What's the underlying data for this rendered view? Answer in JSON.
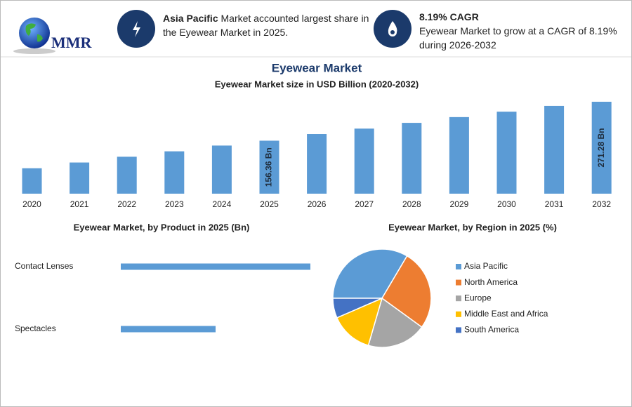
{
  "header": {
    "logo": "MMR",
    "stats": [
      {
        "title": "Asia Pacific",
        "text": "Market accounted largest share in the Eyewear Market in 2025."
      },
      {
        "title": "8.19% CAGR",
        "text": "Eyewear Market to grow at a CAGR of 8.19% during 2026-2032"
      }
    ]
  },
  "chart_data": [
    {
      "type": "bar",
      "title": "Eyewear Market",
      "subtitle": "Eyewear Market size in USD Billion (2020-2032)",
      "categories": [
        "2020",
        "2021",
        "2022",
        "2023",
        "2024",
        "2025",
        "2026",
        "2027",
        "2028",
        "2029",
        "2030",
        "2031",
        "2032"
      ],
      "values": [
        75,
        92,
        109,
        125,
        142,
        156.36,
        176,
        192,
        209,
        226,
        242,
        259,
        271.28
      ],
      "value_labels": [
        null,
        null,
        null,
        null,
        null,
        "156.36 Bn",
        null,
        null,
        null,
        null,
        null,
        null,
        "271.28 Bn"
      ],
      "color": "#5b9bd5"
    },
    {
      "type": "barh",
      "title": "Eyewear Market, by Product in 2025 (Bn)",
      "categories": [
        "Contact Lenses",
        "Spectacles"
      ],
      "values": [
        104,
        52
      ],
      "color": "#5b9bd5"
    },
    {
      "type": "pie",
      "title": "Eyewear Market, by Region in 2025 (%)",
      "categories": [
        "Asia Pacific",
        "North America",
        "Europe",
        "Middle East and Africa",
        "South America"
      ],
      "values": [
        33.5,
        26.5,
        19.5,
        14,
        6.5
      ],
      "colors": [
        "#5b9bd5",
        "#ed7d31",
        "#a5a5a5",
        "#ffc000",
        "#4472c4"
      ]
    }
  ]
}
